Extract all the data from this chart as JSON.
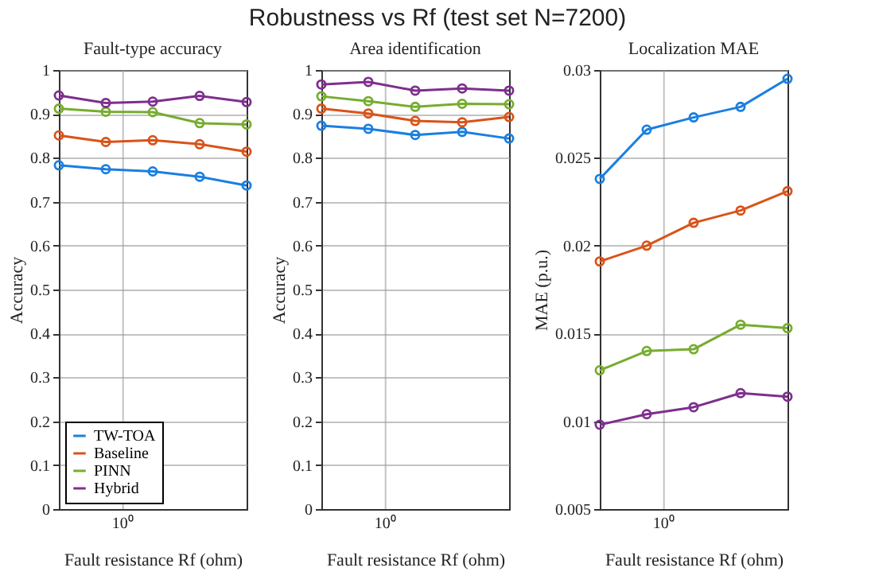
{
  "chart_data": [
    {
      "type": "line",
      "title": "Fault-type accuracy",
      "annotations": [
        "Robustness vs Rf (test set N=7200)",
        "10⁰"
      ],
      "xlabel": "Fault resistance Rf (ohm)",
      "ylabel": "Accuracy",
      "categories": [
        null,
        null,
        null,
        null,
        null
      ],
      "ylim": [
        0,
        1
      ],
      "yticks": [
        0,
        0.1,
        0.2,
        0.3,
        0.4,
        0.5,
        0.6,
        0.7,
        0.8,
        0.9,
        1
      ],
      "grid": true,
      "marker": "circle",
      "legend": "bottom left",
      "series": [
        {
          "name": "TW-TOA",
          "color": "#1a7fe0",
          "values": [
            0.783,
            0.774,
            0.769,
            0.757,
            0.737
          ]
        },
        {
          "name": "Baseline",
          "color": "#d95319",
          "values": [
            0.851,
            0.836,
            0.84,
            0.831,
            0.814
          ]
        },
        {
          "name": "PINN",
          "color": "#77ac30",
          "values": [
            0.912,
            0.905,
            0.904,
            0.879,
            0.876
          ]
        },
        {
          "name": "Hybrid",
          "color": "#7e2f8e",
          "values": [
            0.942,
            0.925,
            0.928,
            0.941,
            0.927
          ]
        }
      ]
    },
    {
      "type": "line",
      "title": "Area identification",
      "annotations": [
        "10⁰"
      ],
      "xlabel": "Fault resistance Rf (ohm)",
      "ylabel": "Accuracy",
      "categories": [
        null,
        null,
        null,
        null,
        null
      ],
      "ylim": [
        0,
        1
      ],
      "yticks": [
        0,
        0.1,
        0.2,
        0.3,
        0.4,
        0.5,
        0.6,
        0.7,
        0.8,
        0.9,
        1
      ],
      "grid": true,
      "marker": "circle",
      "series": [
        {
          "color": "#1a7fe0",
          "values": [
            0.873,
            0.866,
            0.852,
            0.859,
            0.844
          ]
        },
        {
          "color": "#d95319",
          "values": [
            0.912,
            0.901,
            0.884,
            0.881,
            0.893
          ]
        },
        {
          "color": "#77ac30",
          "values": [
            0.94,
            0.929,
            0.916,
            0.923,
            0.922
          ]
        },
        {
          "color": "#7e2f8e",
          "values": [
            0.967,
            0.973,
            0.953,
            0.958,
            0.953
          ]
        }
      ]
    },
    {
      "type": "line",
      "title": "Localization MAE",
      "annotations": [
        "10⁰"
      ],
      "xlabel": "Fault resistance Rf (ohm)",
      "ylabel": "MAE (p.u.)",
      "categories": [
        null,
        null,
        null,
        null,
        null
      ],
      "ylim": [
        0.005,
        0.03
      ],
      "yticks": [
        0.005,
        0.01,
        0.015,
        0.02,
        0.025,
        0.03
      ],
      "grid": true,
      "marker": "circle",
      "series": [
        {
          "color": "#1a7fe0",
          "values": [
            0.0238,
            0.0266,
            0.0273,
            0.0279,
            0.0295
          ]
        },
        {
          "color": "#d95319",
          "values": [
            0.0191,
            0.02,
            0.0213,
            0.022,
            0.0231
          ]
        },
        {
          "color": "#77ac30",
          "values": [
            0.0129,
            0.014,
            0.0141,
            0.0155,
            0.0153
          ]
        },
        {
          "color": "#7e2f8e",
          "values": [
            0.0098,
            0.0104,
            0.0108,
            0.0116,
            0.0114
          ]
        }
      ]
    }
  ]
}
